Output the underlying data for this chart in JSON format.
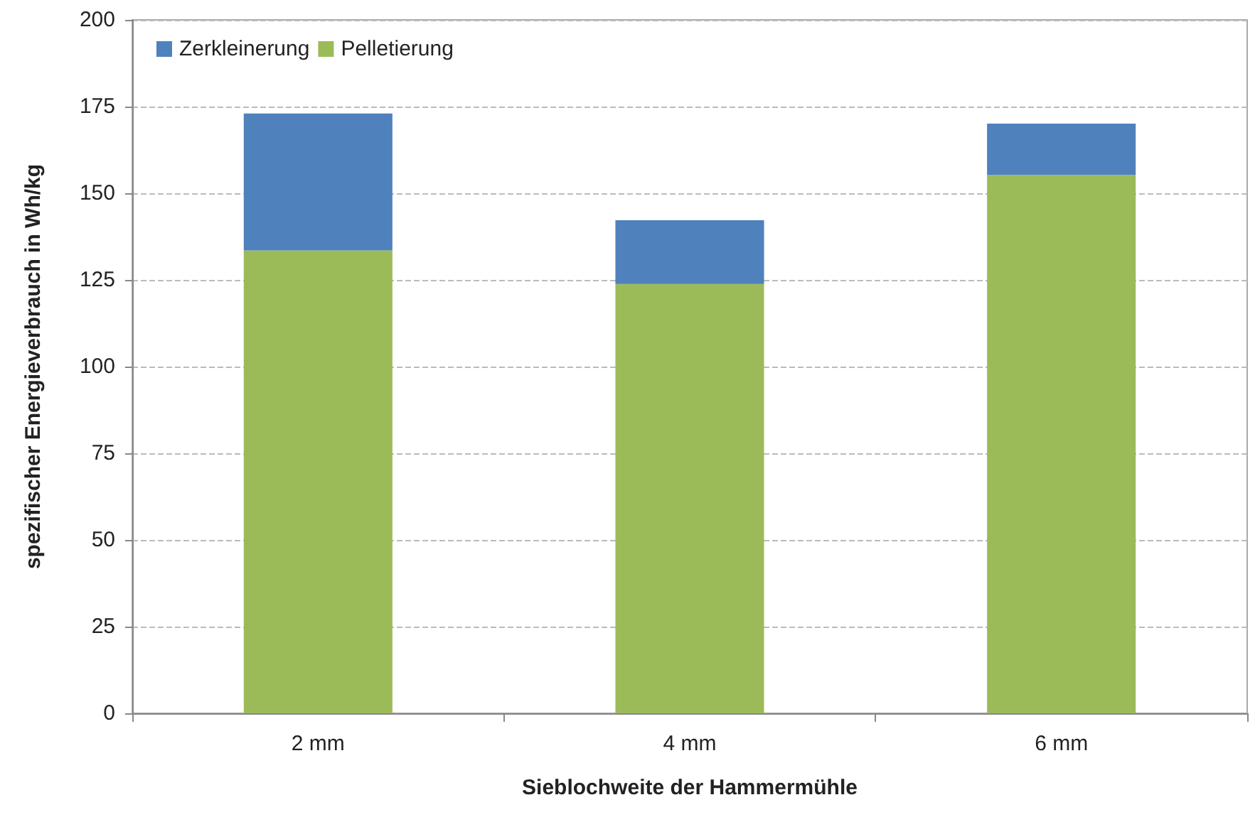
{
  "chart_data": {
    "type": "bar",
    "xlabel": "Sieblochweite der Hammermühle",
    "ylabel": "spezifischer Energieverbrauch in Wh/kg",
    "categories": [
      "2 mm",
      "4 mm",
      "6 mm"
    ],
    "series": [
      {
        "name": "Pelletierung",
        "color": "#9bbb59",
        "values": [
          133.5,
          123.8,
          155.3
        ]
      },
      {
        "name": "Zerkleinerung",
        "color": "#4f81bd",
        "values": [
          39.5,
          18.4,
          14.8
        ]
      }
    ],
    "stacked": true,
    "ylim": [
      0,
      200
    ],
    "yticks": [
      0,
      25,
      50,
      75,
      100,
      125,
      150,
      175,
      200
    ],
    "grid": "y",
    "legend": "top left"
  }
}
